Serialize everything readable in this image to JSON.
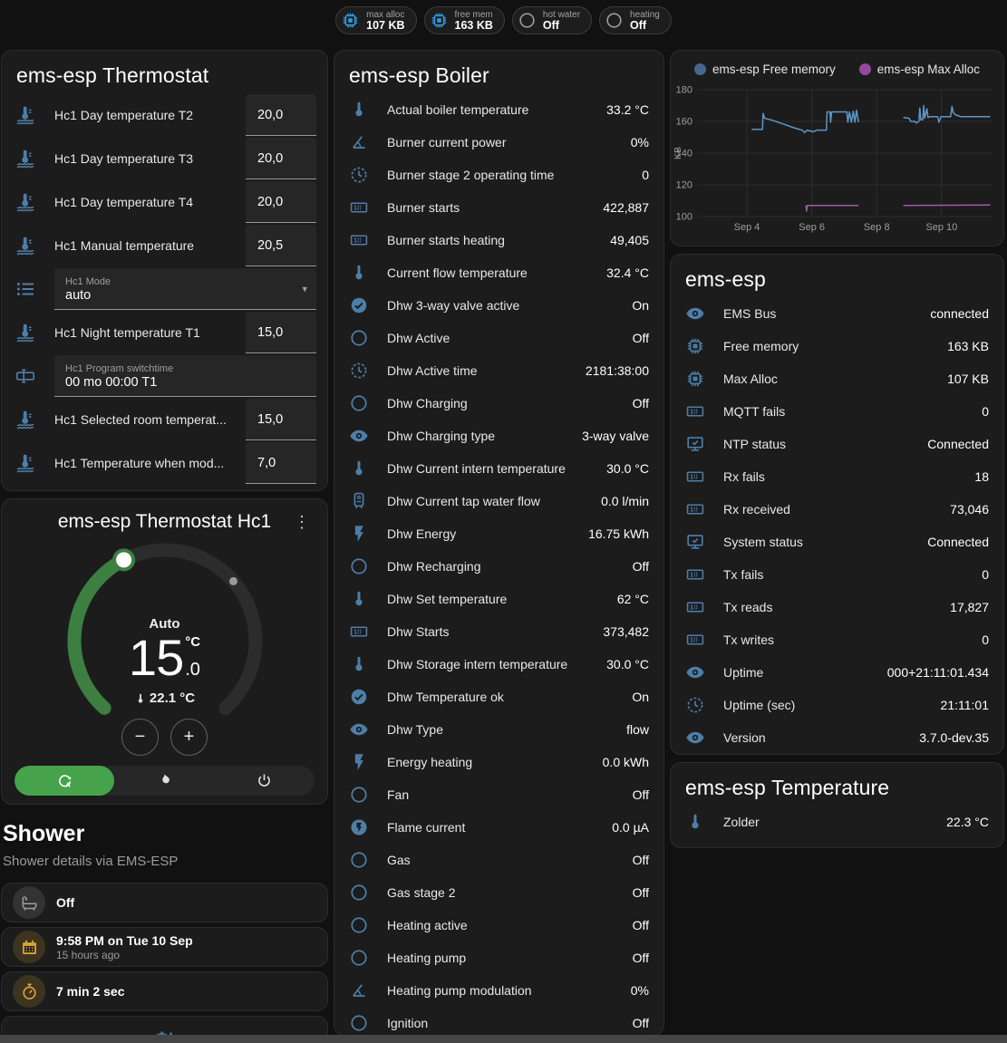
{
  "colors": {
    "accent_blue": "#4d7ea8",
    "badge_blue": "#2f9ade",
    "amber": "#d9a435",
    "green_active": "#46a34b",
    "dial_green": "#3d7e41"
  },
  "badges": [
    {
      "label": "max alloc",
      "value": "107 KB",
      "icon": "chip",
      "icon_color": "#2f9ade"
    },
    {
      "label": "free mem",
      "value": "163 KB",
      "icon": "chip",
      "icon_color": "#2f9ade"
    },
    {
      "label": "hot water",
      "value": "Off",
      "icon": "circle",
      "icon_color": "#9a9a9a"
    },
    {
      "label": "heating",
      "value": "Off",
      "icon": "circle",
      "icon_color": "#9a9a9a"
    }
  ],
  "thermostat_card": {
    "title": "ems-esp Thermostat",
    "rows": [
      {
        "icon": "coolant",
        "label": "Hc1 Day temperature T2",
        "type": "number",
        "value": "20,0"
      },
      {
        "icon": "coolant",
        "label": "Hc1 Day temperature T3",
        "type": "number",
        "value": "20,0"
      },
      {
        "icon": "coolant",
        "label": "Hc1 Day temperature T4",
        "type": "number",
        "value": "20,0"
      },
      {
        "icon": "coolant",
        "label": "Hc1 Manual temperature",
        "type": "number",
        "value": "20,5"
      },
      {
        "icon": "list",
        "label": "Hc1 Mode",
        "type": "select",
        "value": "auto"
      },
      {
        "icon": "coolant",
        "label": "Hc1 Night temperature T1",
        "type": "number",
        "value": "15,0"
      },
      {
        "icon": "textbox",
        "label": "Hc1 Program switchtime",
        "type": "text",
        "value": "00 mo 00:00 T1"
      },
      {
        "icon": "coolant",
        "label": "Hc1 Selected room temperat...",
        "type": "number",
        "value": "15,0"
      },
      {
        "icon": "coolant",
        "label": "Hc1 Temperature when mod...",
        "type": "number",
        "value": "7,0"
      }
    ]
  },
  "hc1_card": {
    "title": "ems-esp Thermostat Hc1",
    "mode_label": "Auto",
    "target_int": "15",
    "target_unit": "°C",
    "target_dec": ".0",
    "current": "22.1 °C",
    "minus": "−",
    "plus": "+"
  },
  "shower": {
    "title": "Shower",
    "subtitle": "Shower details via EMS-ESP",
    "tiles": [
      {
        "icon": "bathtub",
        "color": "gray",
        "primary": "Off"
      },
      {
        "icon": "calendar",
        "color": "amber",
        "primary": "9:58 PM on Tue 10 Sep",
        "secondary": "15 hours ago"
      },
      {
        "icon": "timer",
        "color": "amber",
        "primary": "7 min 2 sec"
      },
      {
        "icon": "snowflake",
        "color": "blue",
        "glyph": "❄!"
      }
    ]
  },
  "boiler_card": {
    "title": "ems-esp Boiler",
    "rows": [
      {
        "icon": "thermometer",
        "label": "Actual boiler temperature",
        "value": "33.2 °C"
      },
      {
        "icon": "angle",
        "label": "Burner current power",
        "value": "0%"
      },
      {
        "icon": "clock",
        "label": "Burner stage 2 operating time",
        "value": "0"
      },
      {
        "icon": "counter",
        "label": "Burner starts",
        "value": "422,887"
      },
      {
        "icon": "counter",
        "label": "Burner starts heating",
        "value": "49,405"
      },
      {
        "icon": "thermometer",
        "label": "Current flow temperature",
        "value": "32.4 °C"
      },
      {
        "icon": "check",
        "label": "Dhw 3-way valve active",
        "value": "On"
      },
      {
        "icon": "circle",
        "label": "Dhw Active",
        "value": "Off"
      },
      {
        "icon": "clock",
        "label": "Dhw Active time",
        "value": "2181:38:00"
      },
      {
        "icon": "circle",
        "label": "Dhw Charging",
        "value": "Off"
      },
      {
        "icon": "eye",
        "label": "Dhw Charging type",
        "value": "3-way valve"
      },
      {
        "icon": "thermometer",
        "label": "Dhw Current intern temperature",
        "value": "30.0 °C"
      },
      {
        "icon": "boiler",
        "label": "Dhw Current tap water flow",
        "value": "0.0 l/min"
      },
      {
        "icon": "flash",
        "label": "Dhw Energy",
        "value": "16.75 kWh"
      },
      {
        "icon": "circle",
        "label": "Dhw Recharging",
        "value": "Off"
      },
      {
        "icon": "thermometer",
        "label": "Dhw Set temperature",
        "value": "62 °C"
      },
      {
        "icon": "counter",
        "label": "Dhw Starts",
        "value": "373,482"
      },
      {
        "icon": "thermometer",
        "label": "Dhw Storage intern temperature",
        "value": "30.0 °C"
      },
      {
        "icon": "check",
        "label": "Dhw Temperature ok",
        "value": "On"
      },
      {
        "icon": "eye",
        "label": "Dhw Type",
        "value": "flow"
      },
      {
        "icon": "flash",
        "label": "Energy heating",
        "value": "0.0 kWh"
      },
      {
        "icon": "circle",
        "label": "Fan",
        "value": "Off"
      },
      {
        "icon": "flashcircle",
        "label": "Flame current",
        "value": "0.0 µA"
      },
      {
        "icon": "circle",
        "label": "Gas",
        "value": "Off"
      },
      {
        "icon": "circle",
        "label": "Gas stage 2",
        "value": "Off"
      },
      {
        "icon": "circle",
        "label": "Heating active",
        "value": "Off"
      },
      {
        "icon": "circle",
        "label": "Heating pump",
        "value": "Off"
      },
      {
        "icon": "angle",
        "label": "Heating pump modulation",
        "value": "0%"
      },
      {
        "icon": "circle",
        "label": "Ignition",
        "value": "Off"
      }
    ]
  },
  "esp_card": {
    "title": "ems-esp",
    "rows": [
      {
        "icon": "eye",
        "label": "EMS Bus",
        "value": "connected"
      },
      {
        "icon": "chip",
        "label": "Free memory",
        "value": "163 KB"
      },
      {
        "icon": "chip",
        "label": "Max Alloc",
        "value": "107 KB"
      },
      {
        "icon": "counter",
        "label": "MQTT fails",
        "value": "0"
      },
      {
        "icon": "monitor",
        "label": "NTP status",
        "value": "Connected"
      },
      {
        "icon": "counter",
        "label": "Rx fails",
        "value": "18"
      },
      {
        "icon": "counter",
        "label": "Rx received",
        "value": "73,046"
      },
      {
        "icon": "monitor",
        "label": "System status",
        "value": "Connected"
      },
      {
        "icon": "counter",
        "label": "Tx fails",
        "value": "0"
      },
      {
        "icon": "counter",
        "label": "Tx reads",
        "value": "17,827"
      },
      {
        "icon": "counter",
        "label": "Tx writes",
        "value": "0"
      },
      {
        "icon": "eye",
        "label": "Uptime",
        "value": "000+21:11:01.434"
      },
      {
        "icon": "clock",
        "label": "Uptime (sec)",
        "value": "21:11:01"
      },
      {
        "icon": "eye",
        "label": "Version",
        "value": "3.7.0-dev.35"
      }
    ]
  },
  "temp_card": {
    "title": "ems-esp Temperature",
    "rows": [
      {
        "icon": "thermometer",
        "label": "Zolder",
        "value": "22.3 °C"
      }
    ]
  },
  "chart_data": {
    "type": "line",
    "ylabel": "KB",
    "grid": true,
    "legend_position": "top",
    "xlim": [
      2.49,
      11.57
    ],
    "ylim": [
      100,
      180
    ],
    "yticks": [
      100,
      120,
      140,
      160,
      180
    ],
    "xticks": [
      {
        "x": 4,
        "label": "Sep 4"
      },
      {
        "x": 6,
        "label": "Sep 6"
      },
      {
        "x": 8,
        "label": "Sep 8"
      },
      {
        "x": 10,
        "label": "Sep 10"
      }
    ],
    "series": [
      {
        "name": "ems-esp Free memory",
        "color": "#5e96c8",
        "dot_color": "#44688c",
        "points": [
          [
            4.15,
            155
          ],
          [
            4.48,
            155
          ],
          [
            4.5,
            165
          ],
          [
            4.55,
            162
          ],
          [
            4.75,
            161
          ],
          [
            5.1,
            158.5
          ],
          [
            5.45,
            156
          ],
          [
            5.7,
            154.5
          ],
          [
            5.78,
            153
          ],
          [
            5.85,
            154.5
          ],
          [
            6.05,
            153.5
          ],
          [
            6.15,
            154.5
          ],
          [
            6.45,
            154.5
          ],
          [
            6.47,
            166
          ],
          [
            6.56,
            166
          ],
          [
            6.58,
            159.5
          ],
          [
            6.61,
            166
          ],
          [
            7.08,
            166
          ],
          [
            7.11,
            159.5
          ],
          [
            7.16,
            166
          ],
          [
            7.22,
            159.5
          ],
          [
            7.28,
            166.5
          ],
          [
            7.33,
            159.5
          ],
          [
            7.38,
            167
          ],
          [
            7.44,
            159.5
          ],
          null,
          [
            8.82,
            162.5
          ],
          [
            9,
            162
          ],
          [
            9.05,
            160
          ],
          [
            9.18,
            160
          ],
          [
            9.22,
            159
          ],
          [
            9.3,
            160
          ],
          [
            9.33,
            168.5
          ],
          [
            9.36,
            161
          ],
          [
            9.42,
            161
          ],
          [
            9.45,
            170
          ],
          [
            9.48,
            162
          ],
          [
            9.55,
            168
          ],
          [
            9.58,
            162.5
          ],
          [
            9.65,
            163
          ],
          [
            9.88,
            163
          ],
          [
            9.92,
            159.5
          ],
          [
            9.98,
            163
          ],
          [
            10.28,
            163
          ],
          [
            10.32,
            169.5
          ],
          [
            10.36,
            165.5
          ],
          [
            10.45,
            164
          ],
          [
            10.6,
            163
          ],
          [
            11.5,
            163
          ]
        ]
      },
      {
        "name": "ems-esp Max Alloc",
        "color": "#a15ba8",
        "dot_color": "#96489c",
        "points": [
          [
            5.82,
            107
          ],
          [
            5.84,
            103.5
          ],
          [
            5.86,
            107
          ],
          [
            7.44,
            107
          ],
          null,
          [
            8.82,
            107
          ],
          [
            11.5,
            107.3
          ]
        ]
      }
    ]
  }
}
